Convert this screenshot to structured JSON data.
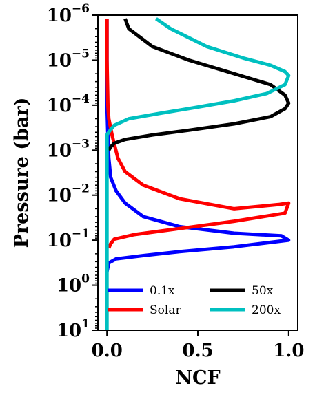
{
  "chart_data": {
    "type": "line",
    "xlabel": "NCF",
    "ylabel": "Pressure (bar)",
    "xlim": [
      -0.05,
      1.05
    ],
    "ylim": [
      10,
      1e-06
    ],
    "yscale": "log",
    "y_inverted": true,
    "x_ticks": [
      {
        "value": 0.0,
        "label": "0.0"
      },
      {
        "value": 0.5,
        "label": "0.5"
      },
      {
        "value": 1.0,
        "label": "1.0"
      }
    ],
    "y_ticks": [
      {
        "value": 1e-06,
        "base": "10",
        "exp": "−6"
      },
      {
        "value": 1e-05,
        "base": "10",
        "exp": "−5"
      },
      {
        "value": 0.0001,
        "base": "10",
        "exp": "−4"
      },
      {
        "value": 0.001,
        "base": "10",
        "exp": "−3"
      },
      {
        "value": 0.01,
        "base": "10",
        "exp": "−2"
      },
      {
        "value": 0.1,
        "base": "10",
        "exp": "−1"
      },
      {
        "value": 1,
        "base": "10",
        "exp": "0"
      },
      {
        "value": 10,
        "base": "10",
        "exp": "1"
      }
    ],
    "grid": false,
    "legend_position": "lower-center",
    "series": [
      {
        "name": "0.1x",
        "color": "#0000ff",
        "points": [
          [
            0.0,
            1.2e-06
          ],
          [
            0.0,
            1e-05
          ],
          [
            0.0,
            0.0001
          ],
          [
            0.005,
            0.0005
          ],
          [
            0.01,
            0.0015
          ],
          [
            0.02,
            0.004
          ],
          [
            0.05,
            0.008
          ],
          [
            0.1,
            0.015
          ],
          [
            0.2,
            0.03
          ],
          [
            0.4,
            0.05
          ],
          [
            0.7,
            0.07
          ],
          [
            0.96,
            0.08
          ],
          [
            1.0,
            0.1
          ],
          [
            0.7,
            0.14
          ],
          [
            0.4,
            0.18
          ],
          [
            0.2,
            0.22
          ],
          [
            0.05,
            0.26
          ],
          [
            0.01,
            0.32
          ],
          [
            0.0,
            0.5
          ]
        ]
      },
      {
        "name": "Solar",
        "color": "#ff0000",
        "points": [
          [
            0.0,
            1.2e-06
          ],
          [
            0.0,
            1e-05
          ],
          [
            0.005,
            0.0001
          ],
          [
            0.01,
            0.0002
          ],
          [
            0.03,
            0.0005
          ],
          [
            0.06,
            0.0015
          ],
          [
            0.1,
            0.003
          ],
          [
            0.2,
            0.006
          ],
          [
            0.4,
            0.012
          ],
          [
            0.7,
            0.02
          ],
          [
            0.95,
            0.016
          ],
          [
            1.0,
            0.015
          ],
          [
            0.98,
            0.025
          ],
          [
            0.7,
            0.038
          ],
          [
            0.4,
            0.055
          ],
          [
            0.15,
            0.075
          ],
          [
            0.04,
            0.095
          ],
          [
            0.02,
            0.12
          ],
          [
            0.01,
            0.15
          ]
        ]
      },
      {
        "name": "50x",
        "color": "#000000",
        "points": [
          [
            0.1,
            1.2e-06
          ],
          [
            0.12,
            2e-06
          ],
          [
            0.25,
            5e-06
          ],
          [
            0.45,
            1e-05
          ],
          [
            0.7,
            2e-05
          ],
          [
            0.9,
            3.5e-05
          ],
          [
            0.98,
            6e-05
          ],
          [
            1.0,
            9e-05
          ],
          [
            0.98,
            0.00012
          ],
          [
            0.9,
            0.00018
          ],
          [
            0.7,
            0.00026
          ],
          [
            0.45,
            0.00036
          ],
          [
            0.25,
            0.00046
          ],
          [
            0.1,
            0.00058
          ],
          [
            0.04,
            0.0007
          ],
          [
            0.02,
            0.00085
          ],
          [
            0.01,
            0.001
          ]
        ]
      },
      {
        "name": "200x",
        "color": "#00c0c0",
        "points": [
          [
            0.27,
            1.2e-06
          ],
          [
            0.35,
            2e-06
          ],
          [
            0.55,
            5e-06
          ],
          [
            0.75,
            9e-06
          ],
          [
            0.9,
            1.3e-05
          ],
          [
            0.98,
            1.8e-05
          ],
          [
            1.0,
            2.2e-05
          ],
          [
            0.98,
            3.5e-05
          ],
          [
            0.88,
            5.5e-05
          ],
          [
            0.7,
            8e-05
          ],
          [
            0.5,
            0.00011
          ],
          [
            0.3,
            0.00015
          ],
          [
            0.12,
            0.0002
          ],
          [
            0.04,
            0.00028
          ],
          [
            0.02,
            0.00035
          ],
          [
            0.0,
            0.00045
          ],
          [
            0.0,
            0.001
          ],
          [
            0.0,
            0.01
          ],
          [
            0.0,
            0.1
          ],
          [
            0.0,
            1
          ],
          [
            0.0,
            10
          ]
        ]
      }
    ]
  }
}
